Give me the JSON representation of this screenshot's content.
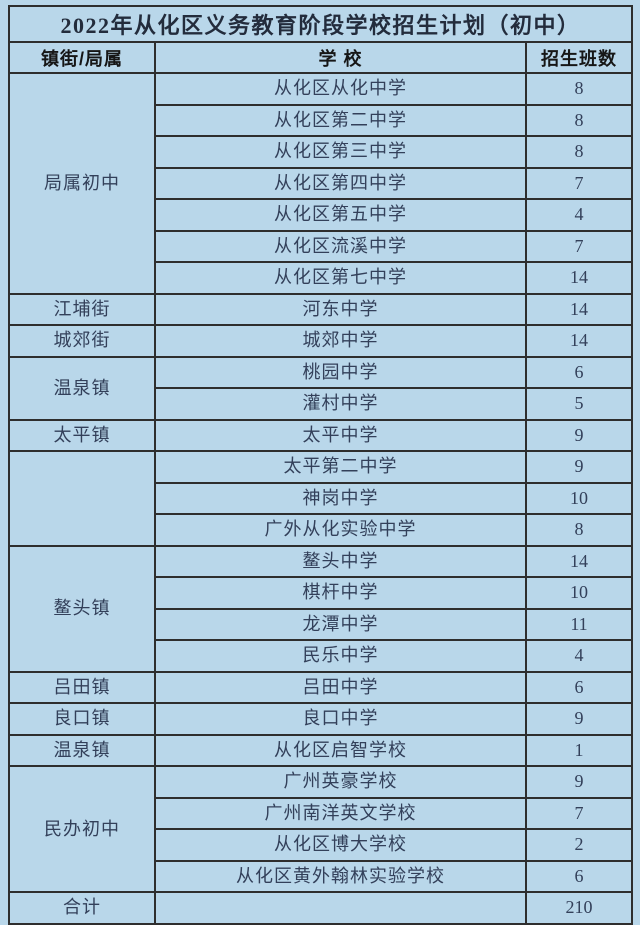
{
  "title": "2022年从化区义务教育阶段学校招生计划（初中）",
  "headers": [
    "镇街/局属",
    "学 校",
    "招生班数"
  ],
  "colors": {
    "background": "#b9d7ea",
    "cell_background": "#b9d7ea",
    "border": "#2e2e2e",
    "title_text": "#232c3c",
    "header_text": "#161616",
    "text": "#33405a"
  },
  "groups": [
    {
      "district": "局属初中",
      "schools": [
        {
          "name": "从化区从化中学",
          "classes": "8"
        },
        {
          "name": "从化区第二中学",
          "classes": "8"
        },
        {
          "name": "从化区第三中学",
          "classes": "8"
        },
        {
          "name": "从化区第四中学",
          "classes": "7"
        },
        {
          "name": "从化区第五中学",
          "classes": "4"
        },
        {
          "name": "从化区流溪中学",
          "classes": "7"
        },
        {
          "name": "从化区第七中学",
          "classes": "14"
        }
      ]
    },
    {
      "district": "江埔街",
      "schools": [
        {
          "name": "河东中学",
          "classes": "14"
        }
      ]
    },
    {
      "district": "城郊街",
      "schools": [
        {
          "name": "城郊中学",
          "classes": "14"
        }
      ]
    },
    {
      "district": "温泉镇",
      "schools": [
        {
          "name": "桃园中学",
          "classes": "6"
        },
        {
          "name": "灌村中学",
          "classes": "5"
        }
      ]
    },
    {
      "district": "太平镇",
      "schools": [
        {
          "name": "太平中学",
          "classes": "9"
        }
      ]
    },
    {
      "district": "",
      "schools": [
        {
          "name": "太平第二中学",
          "classes": "9"
        },
        {
          "name": "神岗中学",
          "classes": "10"
        },
        {
          "name": "广外从化实验中学",
          "classes": "8"
        }
      ]
    },
    {
      "district": "鳌头镇",
      "schools": [
        {
          "name": "鳌头中学",
          "classes": "14"
        },
        {
          "name": "棋杆中学",
          "classes": "10"
        },
        {
          "name": "龙潭中学",
          "classes": "11"
        },
        {
          "name": "民乐中学",
          "classes": "4"
        }
      ]
    },
    {
      "district": "吕田镇",
      "schools": [
        {
          "name": "吕田中学",
          "classes": "6"
        }
      ]
    },
    {
      "district": "良口镇",
      "schools": [
        {
          "name": "良口中学",
          "classes": "9"
        }
      ]
    },
    {
      "district": "温泉镇",
      "schools": [
        {
          "name": "从化区启智学校",
          "classes": "1"
        }
      ]
    },
    {
      "district": "民办初中",
      "schools": [
        {
          "name": "广州英豪学校",
          "classes": "9"
        },
        {
          "name": "广州南洋英文学校",
          "classes": "7"
        },
        {
          "name": "从化区博大学校",
          "classes": "2"
        },
        {
          "name": "从化区黄外翰林实验学校",
          "classes": "6"
        }
      ]
    },
    {
      "district": "合计",
      "type": "total",
      "schools": [
        {
          "name": "",
          "classes": "210"
        }
      ]
    }
  ]
}
